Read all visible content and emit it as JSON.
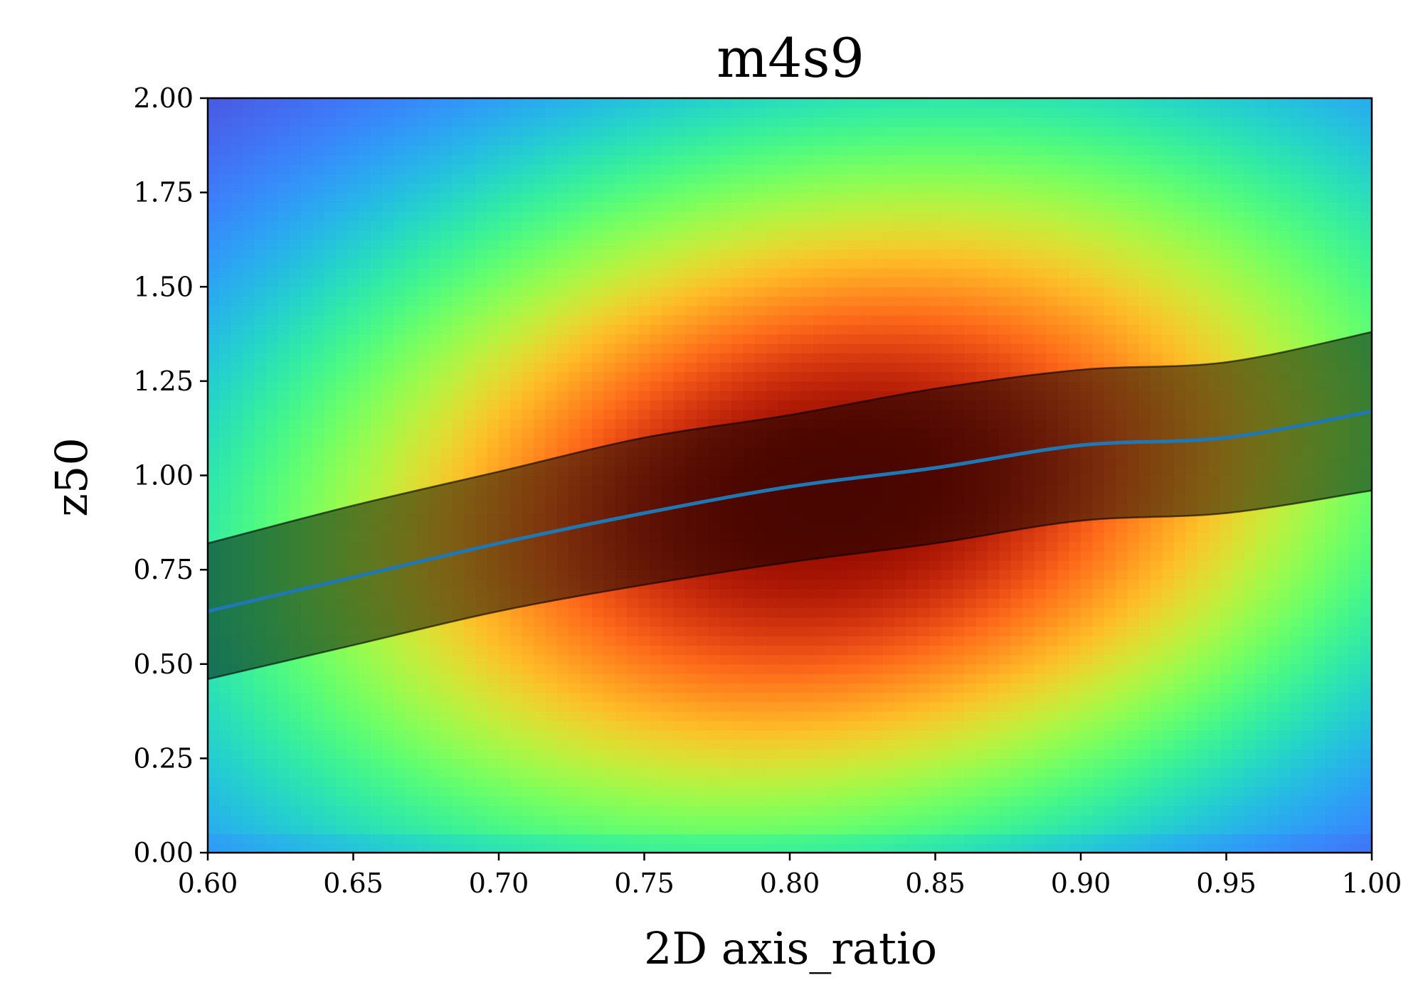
{
  "chart_data": {
    "type": "heatmap",
    "title": "m4s9",
    "xlabel": "2D axis_ratio",
    "ylabel": "z50",
    "xlim": [
      0.6,
      1.0
    ],
    "ylim": [
      0.0,
      2.0
    ],
    "x_ticks": [
      "0.60",
      "0.65",
      "0.70",
      "0.75",
      "0.80",
      "0.85",
      "0.90",
      "0.95",
      "1.00"
    ],
    "y_ticks": [
      "0.00",
      "0.25",
      "0.50",
      "0.75",
      "1.00",
      "1.25",
      "1.50",
      "1.75",
      "2.00"
    ],
    "grid": false,
    "colormap": "turbo",
    "density_peak": {
      "x": 0.815,
      "y": 0.95
    },
    "series": [
      {
        "type": "line",
        "color": "#1f77b4",
        "x": [
          0.6,
          0.65,
          0.7,
          0.75,
          0.8,
          0.85,
          0.9,
          0.95,
          1.0
        ],
        "y": [
          0.64,
          0.73,
          0.82,
          0.9,
          0.97,
          1.02,
          1.08,
          1.1,
          1.17
        ]
      },
      {
        "type": "band",
        "color": "#000000",
        "x": [
          0.6,
          0.65,
          0.7,
          0.75,
          0.8,
          0.85,
          0.9,
          0.95,
          1.0
        ],
        "lower": [
          0.46,
          0.55,
          0.64,
          0.71,
          0.77,
          0.82,
          0.88,
          0.9,
          0.96
        ],
        "upper": [
          0.82,
          0.92,
          1.01,
          1.1,
          1.16,
          1.23,
          1.28,
          1.3,
          1.38
        ]
      }
    ]
  }
}
